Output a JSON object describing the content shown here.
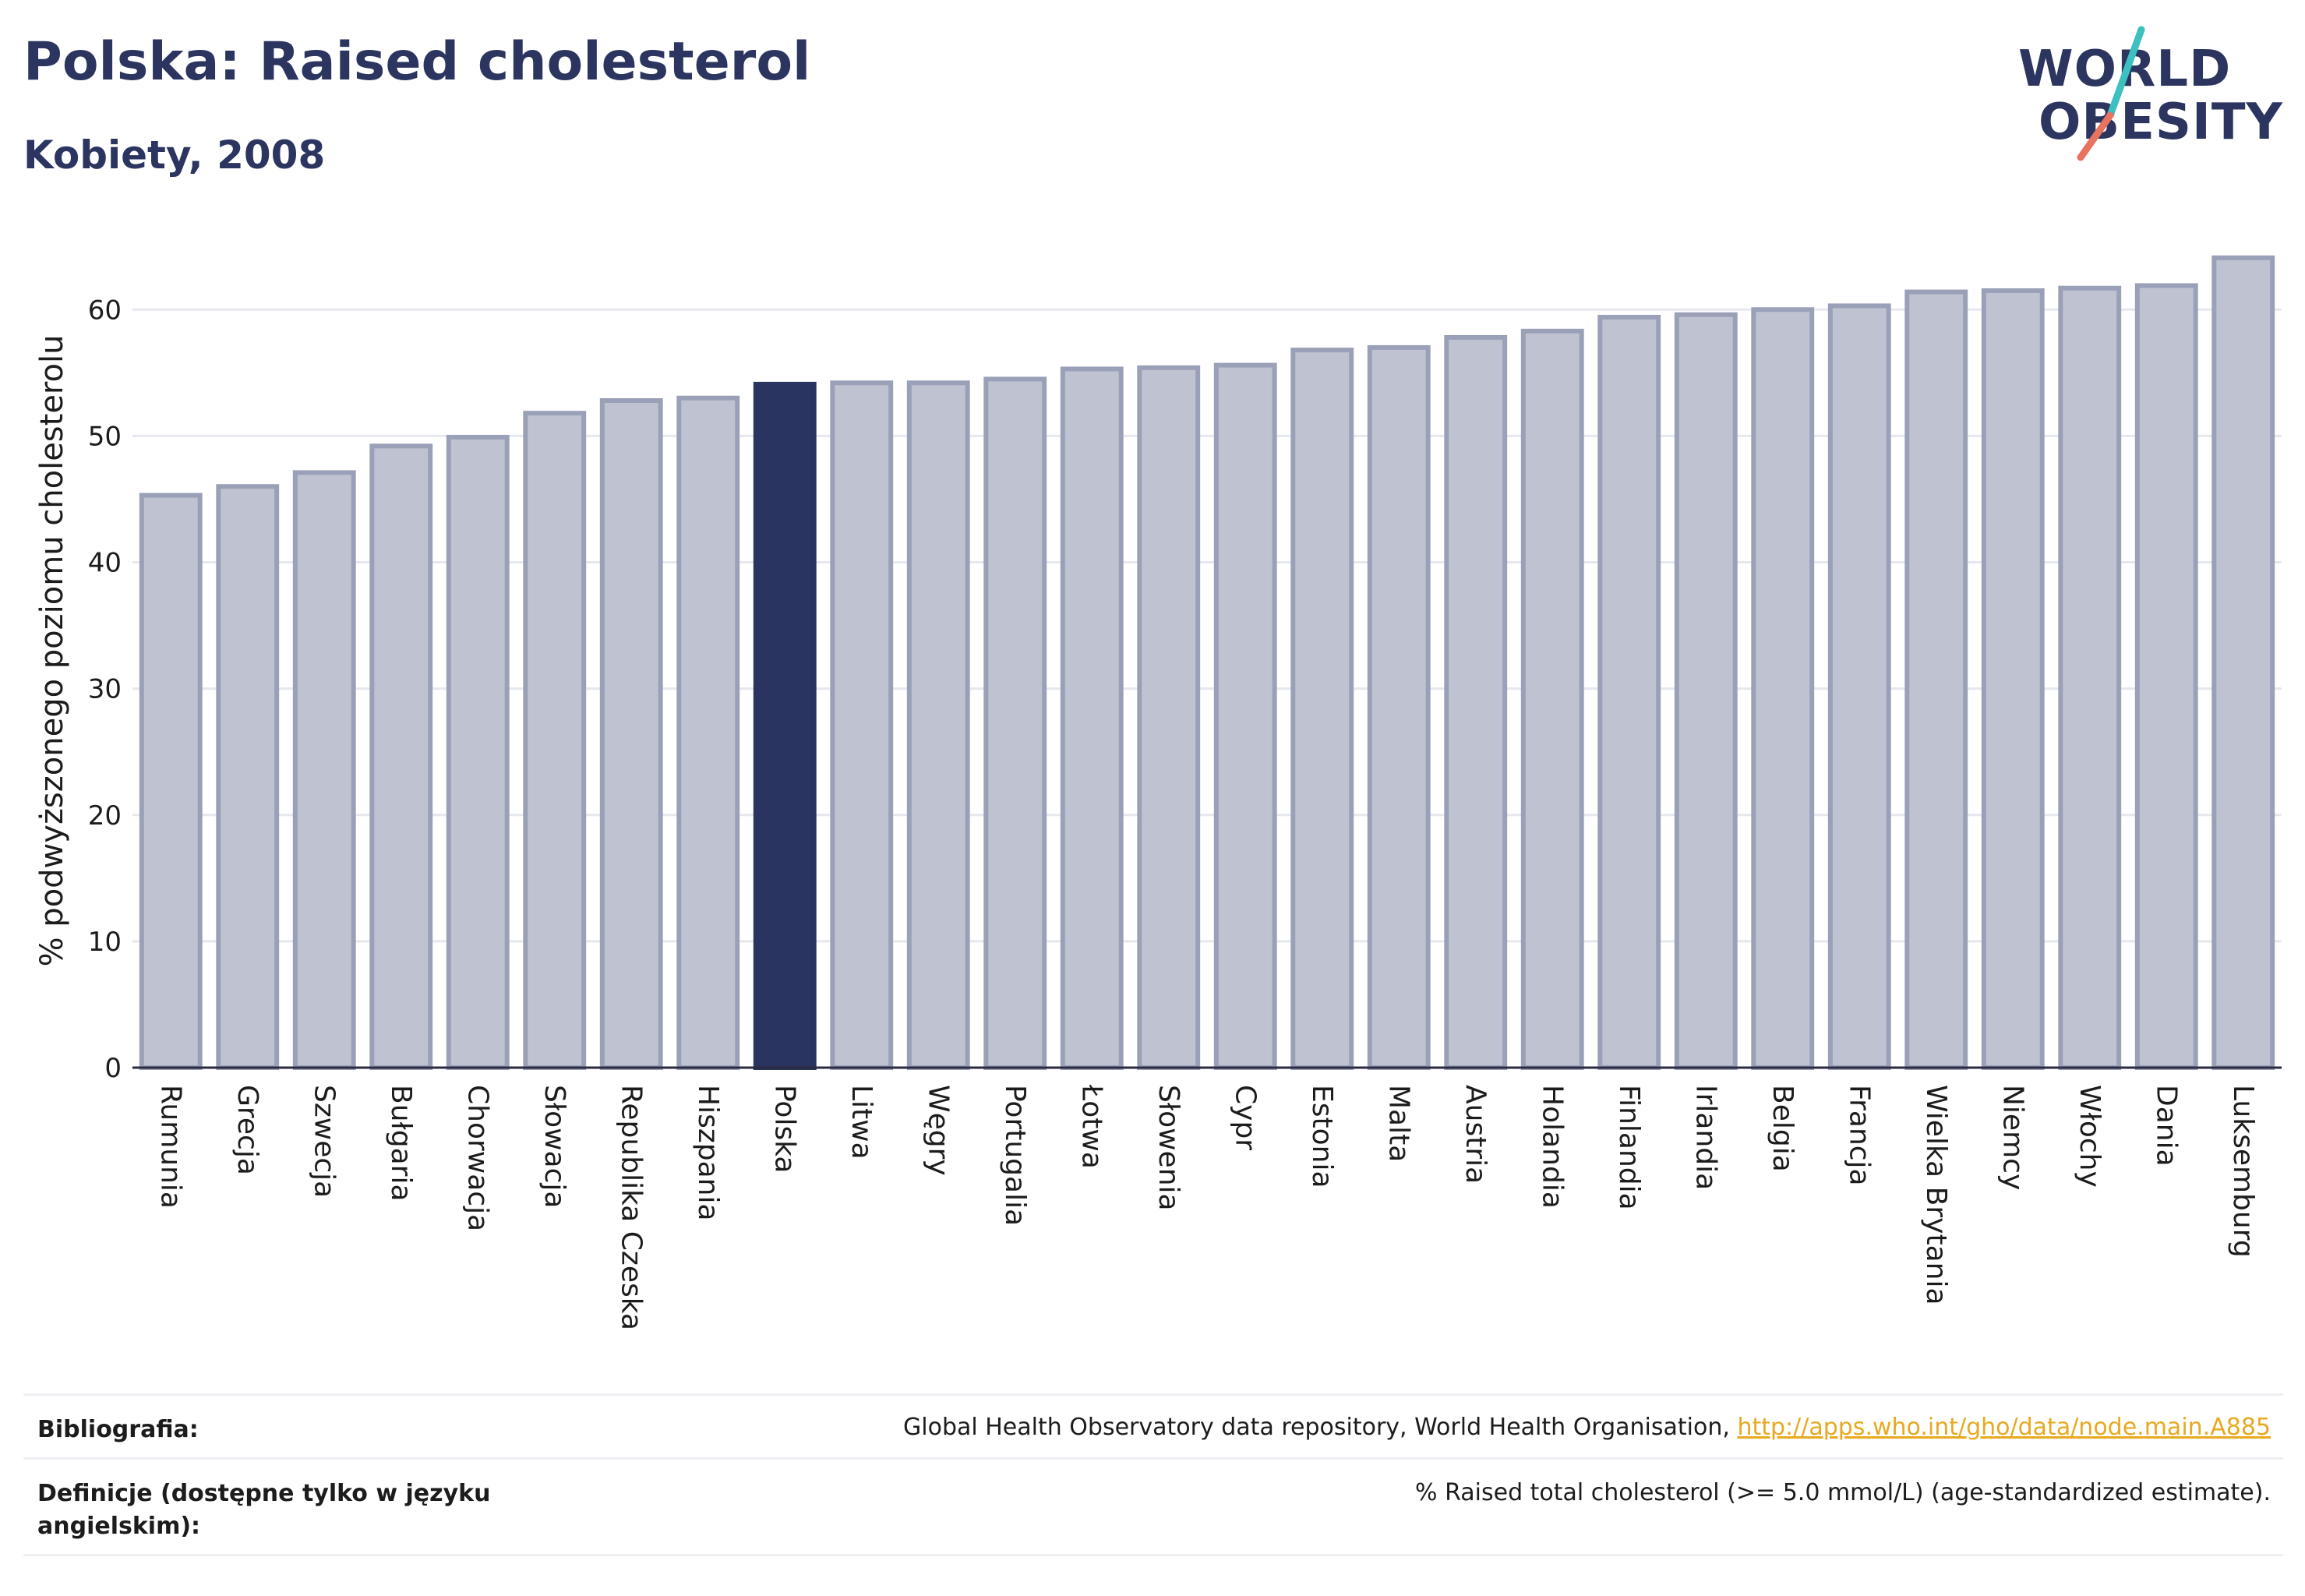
{
  "header": {
    "title": "Polska: Raised cholesterol",
    "subtitle": "Kobiety, 2008"
  },
  "logo": {
    "line1": "WORLD",
    "line2": "OBESITY",
    "accent_colors": [
      "#3cc0c0",
      "#e8735e"
    ]
  },
  "colors": {
    "bar_default": "#bfc3d1",
    "bar_stroke": "#9aa0b8",
    "bar_highlight": "#2a3460",
    "grid": "#e6e8ef",
    "axis": "#2a2a40"
  },
  "chart_data": {
    "type": "bar",
    "title": "",
    "xlabel": "",
    "ylabel": "% podwyższonego poziomu cholesterolu",
    "ylim": [
      0,
      66
    ],
    "yticks": [
      0,
      10,
      20,
      30,
      40,
      50,
      60
    ],
    "grid": true,
    "highlight": "Polska",
    "categories": [
      "Rumunia",
      "Grecja",
      "Szwecja",
      "Bułgaria",
      "Chorwacja",
      "Słowacja",
      "Republika Czeska",
      "Hiszpania",
      "Polska",
      "Litwa",
      "Węgry",
      "Portugalia",
      "Łotwa",
      "Słowenia",
      "Cypr",
      "Estonia",
      "Malta",
      "Austria",
      "Holandia",
      "Finlandia",
      "Irlandia",
      "Belgia",
      "Francja",
      "Wielka Brytania",
      "Niemcy",
      "Włochy",
      "Dania",
      "Luksemburg"
    ],
    "values": [
      45.3,
      46.0,
      47.1,
      49.2,
      49.9,
      51.8,
      52.8,
      53.0,
      54.1,
      54.2,
      54.2,
      54.5,
      55.3,
      55.4,
      55.6,
      56.8,
      57.0,
      57.8,
      58.3,
      59.4,
      59.6,
      60.0,
      60.3,
      61.4,
      61.5,
      61.7,
      61.9,
      64.1
    ]
  },
  "footer": {
    "bibliography_label": "Bibliografia:",
    "bibliography_text": "Global Health Observatory data repository, World Health Organisation, ",
    "bibliography_link": "http://apps.who.int/gho/data/node.main.A885",
    "definition_label": "Definicje (dostępne tylko w języku angielskim):",
    "definition_text": "% Raised total cholesterol (>= 5.0 mmol/L) (age-standardized estimate)."
  }
}
